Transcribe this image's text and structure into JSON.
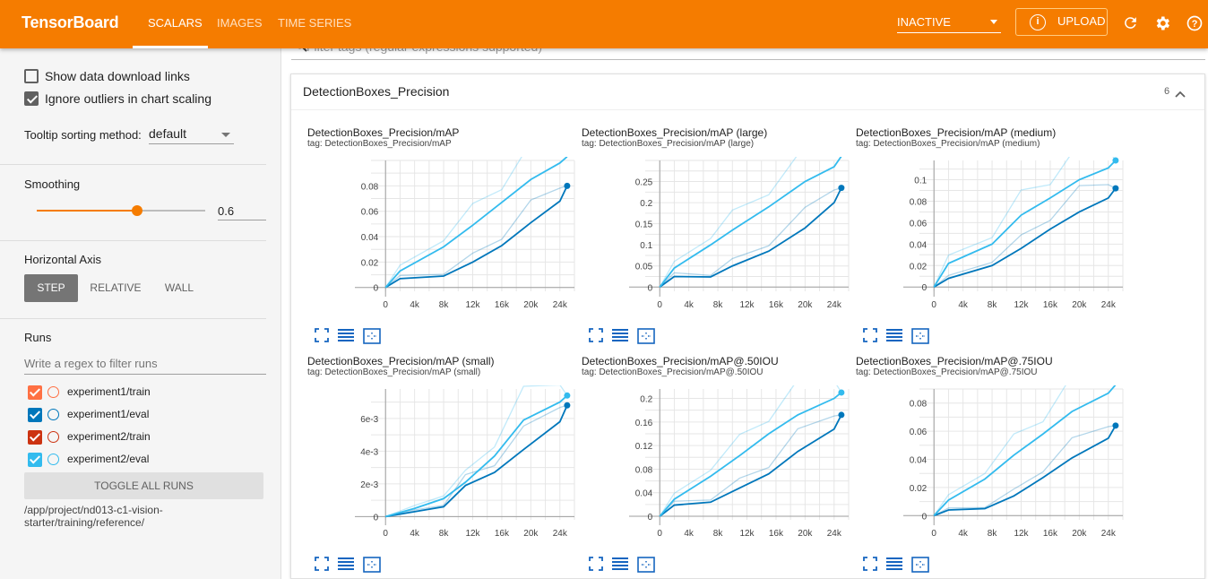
{
  "header": {
    "brand": "TensorBoard",
    "tabs": [
      {
        "label": "SCALARS",
        "active": true
      },
      {
        "label": "IMAGES",
        "active": false
      },
      {
        "label": "TIME SERIES",
        "active": false
      }
    ],
    "status_select": "INACTIVE",
    "upload_label": "UPLOAD",
    "icons": [
      "info-icon",
      "refresh-icon",
      "gear-icon",
      "help-icon"
    ],
    "accent_color": "#f57c00"
  },
  "sidebar": {
    "show_download_links": {
      "label": "Show data download links",
      "checked": false
    },
    "ignore_outliers": {
      "label": "Ignore outliers in chart scaling",
      "checked": true
    },
    "tooltip_sorting": {
      "label": "Tooltip sorting method:",
      "value": "default"
    },
    "smoothing": {
      "label": "Smoothing",
      "value": "0.6",
      "fraction": 0.6
    },
    "horizontal_axis": {
      "label": "Horizontal Axis",
      "options": [
        "STEP",
        "RELATIVE",
        "WALL"
      ],
      "selected": "STEP"
    },
    "runs": {
      "label": "Runs",
      "filter_placeholder": "Write a regex to filter runs",
      "items": [
        {
          "name": "experiment1/train",
          "color": "#ff7043",
          "checked": true
        },
        {
          "name": "experiment1/eval",
          "color": "#0077bb",
          "checked": true
        },
        {
          "name": "experiment2/train",
          "color": "#cc3311",
          "checked": true
        },
        {
          "name": "experiment2/eval",
          "color": "#33bbee",
          "checked": true
        }
      ],
      "toggle_all_label": "TOGGLE ALL RUNS",
      "logdir": "/app/project/nd013-c1-vision-starter/training/reference/"
    }
  },
  "main": {
    "filter_placeholder": "Filter tags (regular expressions supported)",
    "group": {
      "title": "DetectionBoxes_Precision",
      "count": "6"
    },
    "chart_icons": [
      "fullscreen-icon",
      "lines-icon",
      "fit-domain-icon"
    ]
  },
  "chart_data": [
    {
      "type": "line",
      "title": "DetectionBoxes_Precision/mAP",
      "tag": "tag: DetectionBoxes_Precision/mAP",
      "xticks": [
        "0",
        "4k",
        "8k",
        "12k",
        "16k",
        "20k",
        "24k"
      ],
      "yticks": [
        "0",
        "0.02",
        "0.04",
        "0.06",
        "0.08"
      ],
      "ylim": [
        -0.003,
        0.1
      ],
      "xlim": [
        -2000,
        26000
      ],
      "series": [
        {
          "color": "#0077bb",
          "x": [
            0,
            2000,
            8000,
            12000,
            16000,
            20000,
            24000,
            25000
          ],
          "y": [
            0,
            0.007,
            0.009,
            0.02,
            0.033,
            0.051,
            0.068,
            0.08
          ]
        },
        {
          "color": "#33bbee",
          "x": [
            0,
            2000,
            8000,
            12000,
            16000,
            20000,
            24000,
            25000
          ],
          "y": [
            0,
            0.013,
            0.032,
            0.049,
            0.067,
            0.085,
            0.098,
            0.103
          ]
        }
      ]
    },
    {
      "type": "line",
      "title": "DetectionBoxes_Precision/mAP (large)",
      "tag": "tag: DetectionBoxes_Precision/mAP (large)",
      "xticks": [
        "0",
        "4k",
        "8k",
        "12k",
        "16k",
        "20k",
        "24k"
      ],
      "yticks": [
        "0",
        "0.05",
        "0.1",
        "0.15",
        "0.2",
        "0.25"
      ],
      "ylim": [
        -0.01,
        0.3
      ],
      "xlim": [
        -2000,
        26000
      ],
      "series": [
        {
          "color": "#0077bb",
          "x": [
            0,
            2000,
            7000,
            10000,
            15000,
            20000,
            24000,
            25000
          ],
          "y": [
            0,
            0.025,
            0.024,
            0.05,
            0.085,
            0.14,
            0.2,
            0.235
          ]
        },
        {
          "color": "#33bbee",
          "x": [
            0,
            2000,
            7000,
            10000,
            15000,
            20000,
            24000,
            25000
          ],
          "y": [
            0,
            0.045,
            0.1,
            0.135,
            0.19,
            0.25,
            0.285,
            0.31
          ]
        }
      ]
    },
    {
      "type": "line",
      "title": "DetectionBoxes_Precision/mAP (medium)",
      "tag": "tag: DetectionBoxes_Precision/mAP (medium)",
      "xticks": [
        "0",
        "4k",
        "8k",
        "12k",
        "16k",
        "20k",
        "24k"
      ],
      "yticks": [
        "0",
        "0.02",
        "0.04",
        "0.06",
        "0.08",
        "0.1"
      ],
      "ylim": [
        -0.004,
        0.118
      ],
      "xlim": [
        -2000,
        26000
      ],
      "series": [
        {
          "color": "#0077bb",
          "x": [
            0,
            2000,
            8000,
            12000,
            16000,
            20000,
            24000,
            25000
          ],
          "y": [
            0,
            0.008,
            0.02,
            0.036,
            0.054,
            0.07,
            0.083,
            0.092
          ]
        },
        {
          "color": "#33bbee",
          "x": [
            0,
            2000,
            8000,
            12000,
            16000,
            20000,
            24000,
            25000
          ],
          "y": [
            0,
            0.022,
            0.04,
            0.067,
            0.083,
            0.1,
            0.111,
            0.118
          ]
        }
      ]
    },
    {
      "type": "line",
      "title": "DetectionBoxes_Precision/mAP (small)",
      "tag": "tag: DetectionBoxes_Precision/mAP (small)",
      "xticks": [
        "0",
        "4k",
        "8k",
        "12k",
        "16k",
        "20k",
        "24k"
      ],
      "yticks": [
        "0",
        "2e-3",
        "4e-3",
        "6e-3"
      ],
      "ylim": [
        -0.0002,
        0.0078
      ],
      "xlim": [
        -2000,
        26000
      ],
      "series": [
        {
          "color": "#0077bb",
          "x": [
            0,
            4000,
            8000,
            11000,
            15000,
            19000,
            24000,
            25000
          ],
          "y": [
            0,
            0.0003,
            0.0006,
            0.0019,
            0.0027,
            0.0041,
            0.0058,
            0.0068
          ]
        },
        {
          "color": "#33bbee",
          "x": [
            0,
            4000,
            8000,
            11000,
            15000,
            19000,
            24000,
            25000
          ],
          "y": [
            0,
            0.0005,
            0.0011,
            0.0021,
            0.0037,
            0.0059,
            0.007,
            0.0074
          ]
        }
      ]
    },
    {
      "type": "line",
      "title": "DetectionBoxes_Precision/mAP@.50IOU",
      "tag": "tag: DetectionBoxes_Precision/mAP@.50IOU",
      "xticks": [
        "0",
        "4k",
        "8k",
        "12k",
        "16k",
        "20k",
        "24k"
      ],
      "yticks": [
        "0",
        "0.04",
        "0.08",
        "0.12",
        "0.16",
        "0.2"
      ],
      "ylim": [
        -0.006,
        0.216
      ],
      "xlim": [
        -2000,
        26000
      ],
      "series": [
        {
          "color": "#0077bb",
          "x": [
            0,
            2000,
            7000,
            11000,
            15000,
            19000,
            24000,
            25000
          ],
          "y": [
            0,
            0.019,
            0.024,
            0.048,
            0.072,
            0.11,
            0.148,
            0.172
          ]
        },
        {
          "color": "#33bbee",
          "x": [
            0,
            2000,
            7000,
            11000,
            15000,
            19000,
            24000,
            25000
          ],
          "y": [
            0,
            0.029,
            0.068,
            0.103,
            0.14,
            0.172,
            0.2,
            0.21
          ]
        }
      ]
    },
    {
      "type": "line",
      "title": "DetectionBoxes_Precision/mAP@.75IOU",
      "tag": "tag: DetectionBoxes_Precision/mAP@.75IOU",
      "xticks": [
        "0",
        "4k",
        "8k",
        "12k",
        "16k",
        "20k",
        "24k"
      ],
      "yticks": [
        "0",
        "0.02",
        "0.04",
        "0.06",
        "0.08"
      ],
      "ylim": [
        -0.003,
        0.09
      ],
      "xlim": [
        -2000,
        26000
      ],
      "series": [
        {
          "color": "#0077bb",
          "x": [
            0,
            2000,
            7000,
            11000,
            15000,
            19000,
            24000,
            25000
          ],
          "y": [
            0,
            0.004,
            0.005,
            0.014,
            0.027,
            0.041,
            0.055,
            0.064
          ]
        },
        {
          "color": "#33bbee",
          "x": [
            0,
            2000,
            7000,
            11000,
            15000,
            19000,
            24000,
            25000
          ],
          "y": [
            0,
            0.011,
            0.026,
            0.043,
            0.058,
            0.074,
            0.087,
            0.093
          ]
        }
      ]
    }
  ]
}
